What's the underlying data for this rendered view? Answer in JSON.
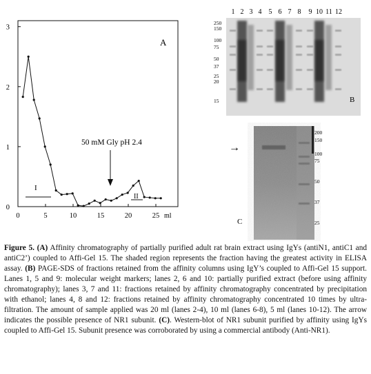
{
  "panelA": {
    "label": "A",
    "annotation": "50 mM Gly pH 2.4",
    "region_labels": [
      "I",
      "II"
    ],
    "x_unit": "ml",
    "chart_data": {
      "type": "line",
      "title": "",
      "xlabel": "ml",
      "ylabel": "",
      "xlim": [
        0,
        29
      ],
      "ylim": [
        0,
        3.1
      ],
      "x_ticks": [
        0,
        5,
        10,
        15,
        20,
        25
      ],
      "y_ticks": [
        0,
        1,
        2,
        3
      ],
      "x": [
        0.9,
        1.9,
        2.9,
        3.9,
        4.9,
        5.9,
        6.9,
        7.9,
        8.9,
        9.9,
        10.9,
        11.9,
        12.9,
        13.9,
        14.9,
        15.9,
        16.9,
        17.9,
        18.9,
        19.9,
        20.9,
        21.9,
        22.9,
        23.9,
        24.9,
        25.9
      ],
      "series": [
        {
          "values": [
            1.83,
            2.5,
            1.78,
            1.47,
            1.0,
            0.7,
            0.27,
            0.2,
            0.21,
            0.22,
            0.02,
            0.01,
            0.05,
            0.1,
            0.06,
            0.12,
            0.1,
            0.14,
            0.2,
            0.23,
            0.35,
            0.43,
            0.16,
            0.15,
            0.14,
            0.14
          ]
        }
      ],
      "grid": false
    }
  },
  "panelB": {
    "label": "B",
    "lane_labels": [
      "1",
      "2",
      "3",
      "4",
      "5",
      "6",
      "7",
      "8",
      "9",
      "10",
      "11",
      "12"
    ],
    "marker_labels": [
      "250",
      "150",
      "100",
      "75",
      "50",
      "37",
      "25",
      "20",
      "15"
    ]
  },
  "panelC": {
    "label": "C",
    "arrow": "→",
    "marker_labels": [
      "200",
      "150",
      "100",
      "75",
      "50",
      "37",
      "25"
    ]
  },
  "caption": {
    "lead": "Figure 5.",
    "part1_label": "(A)",
    "part1_text": " Affinity chromatography of partially purified adult rat brain extract using IgYs (antiN1, antiC1 and antiC2’) coupled to Affi-Gel 15. The shaded region represents the fraction having the greatest activity in ELISA assay. ",
    "part2_label": "(B)",
    "part2_text": " PAGE-SDS of fractions retained from the affinity columns using IgY’s coupled to Affi-Gel 15 support. Lanes 1, 5 and 9: molecular weight markers; lanes 2, 6 and 10: partially purified extract (before using affinity chromatography); lanes 3, 7 and 11: fractions retained by affinity chromatography concentrated by precipitation with ethanol; lanes 4, 8 and 12: fractions retained by affinity chromatography concentrated 10 times by ultra-filtration. The amount of sample applied was 20 ml (lanes 2-4), 10 ml (lanes 6-8), 5 ml (lanes 10-12). The arrow indicates the possible presence of NR1 subunit. ",
    "part3_label": "(C)",
    "part3_text": ". Western-blot of NR1 subunit purified by affinity using IgYs coupled to Affi-Gel 15. Subunit presence was corroborated by using a commercial antibody (Anti-NR1)."
  }
}
